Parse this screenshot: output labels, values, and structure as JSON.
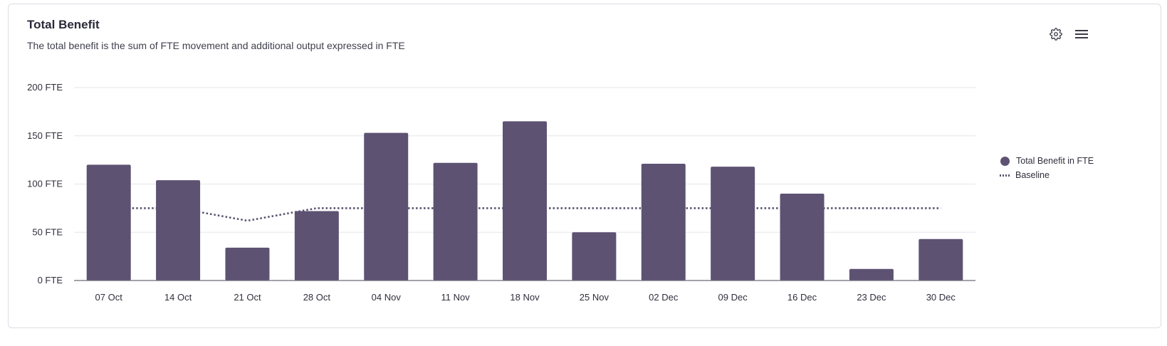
{
  "header": {
    "title": "Total Benefit",
    "subtitle": "The total benefit is the sum of FTE movement and additional output expressed in FTE"
  },
  "toolbar": {
    "settings_icon": "gear-icon",
    "menu_icon": "hamburger-menu-icon"
  },
  "colors": {
    "bar": "#5e5273",
    "baseline": "#5b5270",
    "grid": "#e6e6ea",
    "axis": "#6b6b78"
  },
  "chart_data": {
    "type": "bar",
    "categories": [
      "07 Oct",
      "14 Oct",
      "21 Oct",
      "28 Oct",
      "04 Nov",
      "11 Nov",
      "18 Nov",
      "25 Nov",
      "02 Dec",
      "09 Dec",
      "16 Dec",
      "23 Dec",
      "30 Dec"
    ],
    "series": [
      {
        "name": "Total Benefit in FTE",
        "type": "bar",
        "values": [
          120,
          104,
          34,
          72,
          153,
          122,
          165,
          50,
          121,
          118,
          90,
          12,
          43
        ]
      },
      {
        "name": "Baseline",
        "type": "line",
        "style": "dotted",
        "values": [
          75,
          75,
          62,
          75,
          75,
          75,
          75,
          75,
          75,
          75,
          75,
          75,
          75
        ]
      }
    ],
    "y_ticks": [
      "0 FTE",
      "50 FTE",
      "100 FTE",
      "150 FTE",
      "200 FTE"
    ],
    "ylim": [
      0,
      200
    ],
    "grid": true,
    "legend_position": "right"
  }
}
